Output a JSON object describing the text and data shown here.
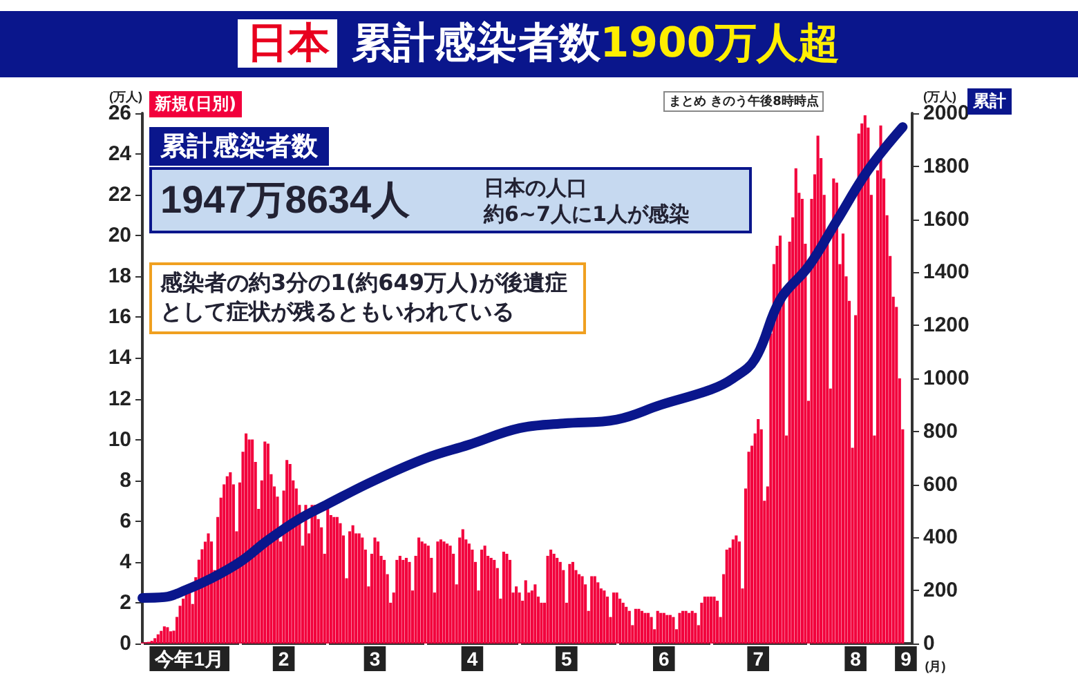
{
  "chart_data": {
    "type": "bar",
    "title": "日本 累計感染者数1900万人超",
    "ylabel": "(万人)",
    "y2label": "(万人)",
    "xlabel": "(月)",
    "annotations": [
      "まとめ きのう午後8時時点",
      "累計感染者数",
      "1947万8634人",
      "日本の人口",
      "約6~7人に1人が感染",
      "感染者の約3分の1(約649万人)が後遺症として症状が残るともいわれている"
    ],
    "xlim": [
      "--01-01",
      "--09-03"
    ],
    "xticks": [
      {
        "value": "--01-01",
        "label": null
      },
      {
        "value": "--01-16",
        "label": "今年1月"
      },
      {
        "value": "--02-01",
        "label": null
      },
      {
        "value": "--02-15",
        "label": "2"
      },
      {
        "value": "--03-01",
        "label": null
      },
      {
        "value": "--03-16",
        "label": "3"
      },
      {
        "value": "--04-01",
        "label": null
      },
      {
        "value": "--04-16",
        "label": "4"
      },
      {
        "value": "--05-01",
        "label": null
      },
      {
        "value": "--05-16",
        "label": "5"
      },
      {
        "value": "--06-01",
        "label": null
      },
      {
        "value": "--06-16",
        "label": "6"
      },
      {
        "value": "--07-01",
        "label": null
      },
      {
        "value": "--07-16",
        "label": "7"
      },
      {
        "value": "--08-01",
        "label": null
      },
      {
        "value": "--08-16",
        "label": "8"
      },
      {
        "value": "--09-01",
        "label": "9"
      }
    ],
    "ylim": [
      0,
      26
    ],
    "yticks": [
      0,
      2,
      4,
      6,
      8,
      10,
      12,
      14,
      16,
      18,
      20,
      22,
      24,
      26
    ],
    "y2lim": [
      0,
      2000
    ],
    "y2ticks": [
      0,
      200,
      400,
      600,
      800,
      1000,
      1200,
      1400,
      1600,
      1800,
      2000
    ],
    "series": [
      {
        "name": "新規(日別)",
        "color": "#f2003c",
        "x": [
          "--01-01",
          "--01-02",
          "--01-03",
          "--01-04",
          "--01-05",
          "--01-06",
          "--01-07",
          "--01-08",
          "--01-09",
          "--01-10",
          "--01-11",
          "--01-12",
          "--01-13",
          "--01-14",
          "--01-15",
          "--01-16",
          "--01-17",
          "--01-18",
          "--01-19",
          "--01-20",
          "--01-21",
          "--01-22",
          "--01-23",
          "--01-24",
          "--01-25",
          "--01-26",
          "--01-27",
          "--01-28",
          "--01-29",
          "--01-30",
          "--01-31",
          "--02-01",
          "--02-02",
          "--02-03",
          "--02-04",
          "--02-05",
          "--02-06",
          "--02-07",
          "--02-08",
          "--02-09",
          "--02-10",
          "--02-11",
          "--02-12",
          "--02-13",
          "--02-14",
          "--02-15",
          "--02-16",
          "--02-17",
          "--02-18",
          "--02-19",
          "--02-20",
          "--02-21",
          "--02-22",
          "--02-23",
          "--02-24",
          "--02-25",
          "--02-26",
          "--02-27",
          "--02-28",
          "--03-01",
          "--03-02",
          "--03-03",
          "--03-04",
          "--03-05",
          "--03-06",
          "--03-07",
          "--03-08",
          "--03-09",
          "--03-10",
          "--03-11",
          "--03-12",
          "--03-13",
          "--03-14",
          "--03-15",
          "--03-16",
          "--03-17",
          "--03-18",
          "--03-19",
          "--03-20",
          "--03-21",
          "--03-22",
          "--03-23",
          "--03-24",
          "--03-25",
          "--03-26",
          "--03-27",
          "--03-28",
          "--03-29",
          "--03-30",
          "--03-31",
          "--04-01",
          "--04-02",
          "--04-03",
          "--04-04",
          "--04-05",
          "--04-06",
          "--04-07",
          "--04-08",
          "--04-09",
          "--04-10",
          "--04-11",
          "--04-12",
          "--04-13",
          "--04-14",
          "--04-15",
          "--04-16",
          "--04-17",
          "--04-18",
          "--04-19",
          "--04-20",
          "--04-21",
          "--04-22",
          "--04-23",
          "--04-24",
          "--04-25",
          "--04-26",
          "--04-27",
          "--04-28",
          "--04-29",
          "--04-30",
          "--05-01",
          "--05-02",
          "--05-03",
          "--05-04",
          "--05-05",
          "--05-06",
          "--05-07",
          "--05-08",
          "--05-09",
          "--05-10",
          "--05-11",
          "--05-12",
          "--05-13",
          "--05-14",
          "--05-15",
          "--05-16",
          "--05-17",
          "--05-18",
          "--05-19",
          "--05-20",
          "--05-21",
          "--05-22",
          "--05-23",
          "--05-24",
          "--05-25",
          "--05-26",
          "--05-27",
          "--05-28",
          "--05-29",
          "--05-30",
          "--05-31",
          "--06-01",
          "--06-02",
          "--06-03",
          "--06-04",
          "--06-05",
          "--06-06",
          "--06-07",
          "--06-08",
          "--06-09",
          "--06-10",
          "--06-11",
          "--06-12",
          "--06-13",
          "--06-14",
          "--06-15",
          "--06-16",
          "--06-17",
          "--06-18",
          "--06-19",
          "--06-20",
          "--06-21",
          "--06-22",
          "--06-23",
          "--06-24",
          "--06-25",
          "--06-26",
          "--06-27",
          "--06-28",
          "--06-29",
          "--06-30",
          "--07-01",
          "--07-02",
          "--07-03",
          "--07-04",
          "--07-05",
          "--07-06",
          "--07-07",
          "--07-08",
          "--07-09",
          "--07-10",
          "--07-11",
          "--07-12",
          "--07-13",
          "--07-14",
          "--07-15",
          "--07-16",
          "--07-17",
          "--07-18",
          "--07-19",
          "--07-20",
          "--07-21",
          "--07-22",
          "--07-23",
          "--07-24",
          "--07-25",
          "--07-26",
          "--07-27",
          "--07-28",
          "--07-29",
          "--07-30",
          "--07-31",
          "--08-01",
          "--08-02",
          "--08-03",
          "--08-04",
          "--08-05",
          "--08-06",
          "--08-07",
          "--08-08",
          "--08-09",
          "--08-10",
          "--08-11",
          "--08-12",
          "--08-13",
          "--08-14",
          "--08-15",
          "--08-16",
          "--08-17",
          "--08-18",
          "--08-19",
          "--08-20",
          "--08-21",
          "--08-22",
          "--08-23",
          "--08-24",
          "--08-25",
          "--08-26",
          "--08-27",
          "--08-28",
          "--08-29",
          "--08-30",
          "--08-31"
        ],
        "values": [
          0.05,
          0.06,
          0.08,
          0.13,
          0.26,
          0.45,
          0.62,
          0.84,
          0.8,
          0.6,
          0.63,
          1.3,
          1.85,
          2.2,
          2.56,
          2.58,
          1.94,
          3.25,
          4.11,
          4.62,
          4.99,
          5.4,
          5.0,
          3.6,
          6.2,
          7.15,
          7.8,
          8.2,
          8.4,
          7.8,
          5.5,
          7.9,
          9.4,
          10.3,
          10.0,
          10.0,
          8.9,
          6.6,
          8.0,
          9.9,
          9.8,
          8.3,
          7.7,
          7.2,
          5.0,
          7.5,
          9.0,
          8.8,
          8.0,
          7.6,
          6.8,
          4.8,
          6.8,
          5.4,
          6.8,
          6.8,
          6.1,
          5.7,
          4.4,
          6.6,
          6.3,
          6.2,
          6.2,
          5.9,
          5.3,
          3.2,
          5.5,
          5.8,
          5.4,
          5.4,
          5.2,
          4.6,
          2.8,
          4.4,
          5.2,
          5.0,
          4.3,
          4.1,
          3.4,
          2.0,
          2.5,
          4.1,
          4.3,
          4.1,
          4.2,
          4.0,
          2.6,
          4.3,
          5.2,
          5.0,
          4.9,
          4.8,
          4.2,
          2.5,
          5.0,
          5.1,
          5.0,
          4.9,
          4.8,
          4.4,
          2.9,
          5.2,
          5.6,
          5.1,
          4.9,
          4.6,
          4.0,
          2.6,
          4.6,
          4.8,
          4.3,
          4.2,
          4.1,
          3.7,
          2.2,
          4.5,
          4.4,
          4.1,
          2.5,
          2.8,
          2.5,
          2.1,
          3.1,
          2.5,
          2.6,
          2.9,
          2.3,
          2.0,
          2.0,
          4.3,
          4.6,
          4.4,
          4.2,
          4.0,
          3.6,
          2.0,
          3.9,
          4.0,
          3.6,
          3.4,
          3.3,
          2.9,
          1.6,
          3.3,
          3.3,
          3.0,
          2.7,
          2.6,
          2.3,
          1.3,
          2.5,
          2.5,
          2.2,
          2.0,
          1.8,
          1.6,
          0.9,
          1.7,
          1.7,
          1.6,
          1.5,
          1.5,
          1.3,
          0.7,
          1.6,
          1.5,
          1.5,
          1.4,
          1.4,
          1.3,
          0.7,
          1.5,
          1.6,
          1.6,
          1.5,
          1.6,
          1.5,
          0.9,
          2.0,
          2.3,
          2.3,
          2.3,
          2.3,
          2.1,
          1.3,
          3.4,
          4.6,
          4.7,
          5.1,
          5.3,
          5.0,
          2.7,
          7.6,
          9.4,
          9.7,
          10.3,
          11.0,
          10.5,
          7.0,
          7.7,
          15.2,
          18.6,
          19.5,
          20.0,
          16.9,
          10.2,
          19.7,
          20.9,
          23.3,
          22.1,
          21.8,
          19.6,
          11.9,
          21.8,
          23.0,
          24.9,
          23.8,
          22.0,
          19.7,
          12.5,
          22.8,
          22.6,
          18.6,
          20.1,
          18.0,
          16.8,
          9.6,
          16.1,
          25.0,
          25.5,
          25.9,
          25.3,
          22.0,
          10.2,
          23.2,
          25.4,
          22.8,
          21.0,
          19.0,
          17.0,
          16.5,
          13.0,
          10.5
        ]
      },
      {
        "name": "累計",
        "type": "line",
        "axis": "y2",
        "color": "#0a168c",
        "x": [
          "--01-01",
          "--01-08",
          "--01-15",
          "--01-22",
          "--02-01",
          "--02-10",
          "--02-20",
          "--03-01",
          "--03-15",
          "--04-01",
          "--04-15",
          "--05-01",
          "--05-15",
          "--06-01",
          "--06-15",
          "--07-01",
          "--07-08",
          "--07-15",
          "--07-23",
          "--08-01",
          "--08-10",
          "--08-20",
          "--08-31"
        ],
        "values": [
          172,
          175,
          203,
          240,
          307,
          390,
          470,
          526,
          610,
          698,
          750,
          812,
          830,
          845,
          900,
          958,
          1000,
          1073,
          1297,
          1422,
          1594,
          1786,
          1948
        ]
      }
    ]
  }
}
